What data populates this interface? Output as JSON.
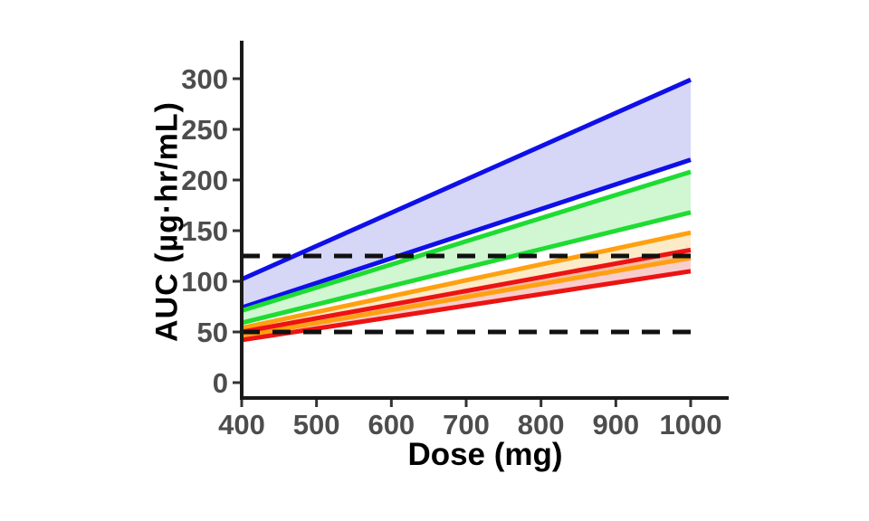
{
  "chart_data": {
    "type": "area",
    "title": "",
    "xlabel": "Dose (mg)",
    "ylabel": "AUC (µg·hr/mL)",
    "x_ticks": [
      400,
      500,
      600,
      700,
      800,
      900,
      1000
    ],
    "y_ticks": [
      0,
      50,
      100,
      150,
      200,
      250,
      300
    ],
    "xlim": [
      400,
      1000
    ],
    "ylim": [
      0,
      330
    ],
    "grid": false,
    "legend": "none",
    "x": [
      400,
      1000
    ],
    "series": [
      {
        "name": "blue-band",
        "line_color": "#0f0fe8",
        "fill_color": "rgba(90,90,225,0.25)",
        "upper": [
          102,
          299
        ],
        "lower": [
          74,
          220
        ]
      },
      {
        "name": "green-band",
        "line_color": "#1edc32",
        "fill_color": "rgba(80,220,90,0.27)",
        "upper": [
          71,
          208
        ],
        "lower": [
          59,
          168
        ]
      },
      {
        "name": "orange-band",
        "line_color": "#ffa011",
        "fill_color": "rgba(250,185,70,0.30)",
        "upper": [
          54,
          148
        ],
        "lower": [
          46,
          123
        ]
      },
      {
        "name": "red-band",
        "line_color": "#ec1313",
        "fill_color": "rgba(235,55,55,0.25)",
        "upper": [
          50,
          131
        ],
        "lower": [
          42,
          110
        ]
      }
    ],
    "reference_lines": [
      {
        "name": "upper-target",
        "value": 125,
        "style": "dashed",
        "color": "#111111"
      },
      {
        "name": "lower-target",
        "value": 50,
        "style": "dashed",
        "color": "#111111"
      }
    ],
    "axis_color": "#1a1a1a",
    "tick_label_color": "#4d4d4d"
  }
}
